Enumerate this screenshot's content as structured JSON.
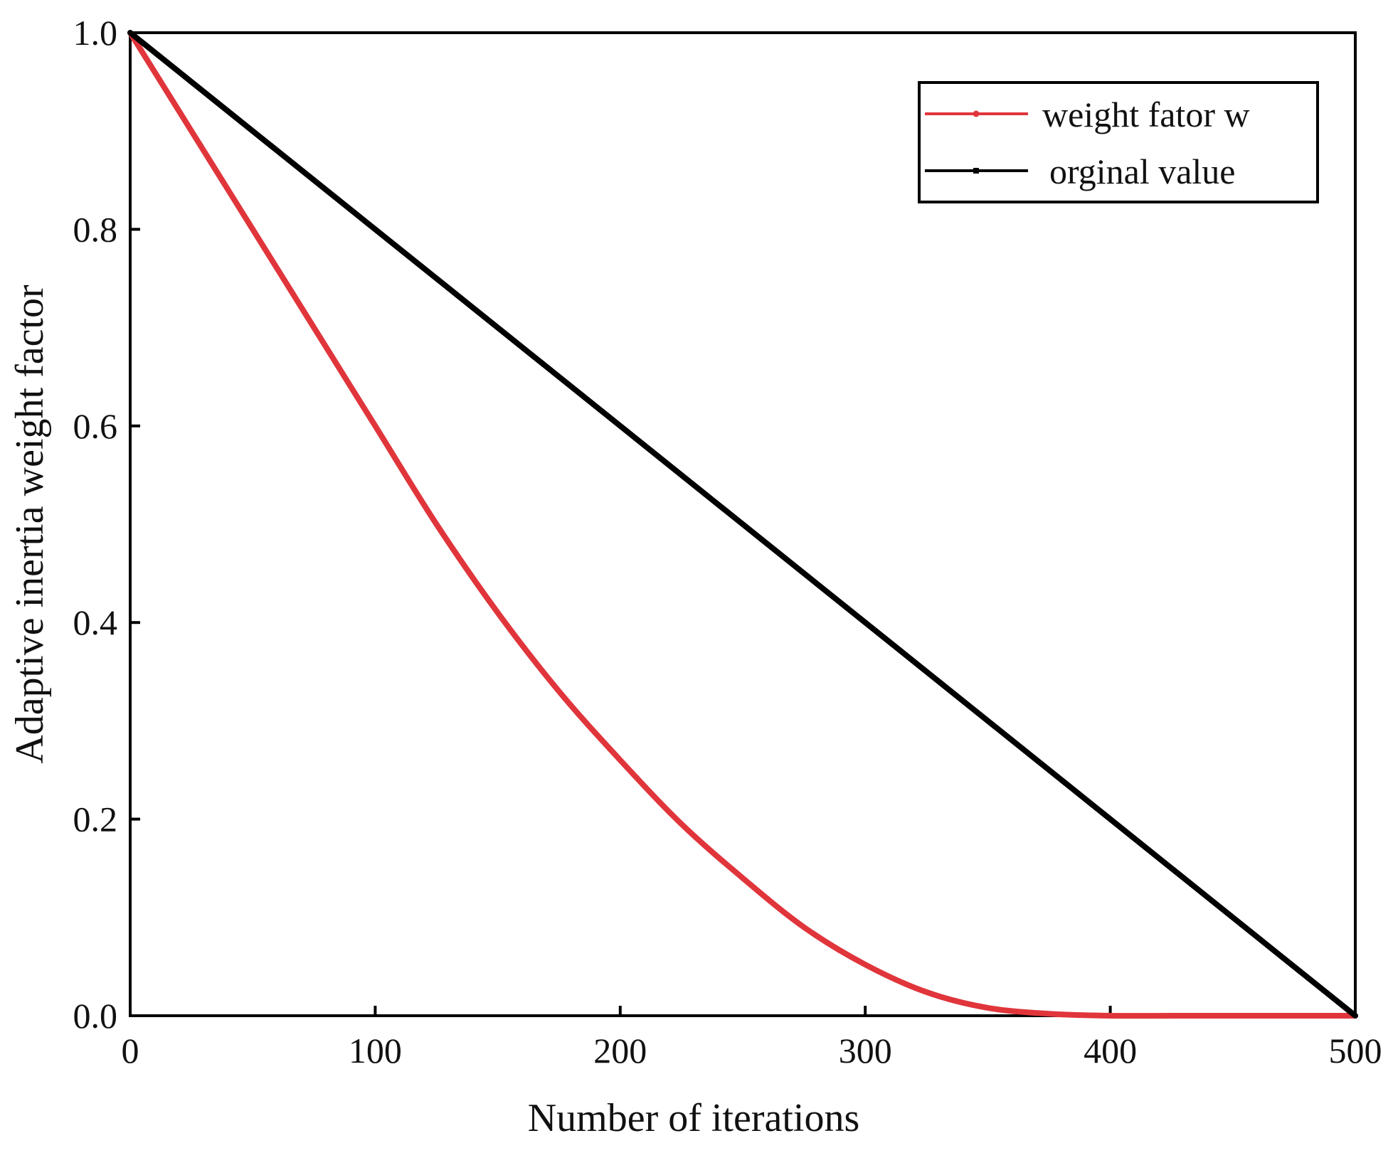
{
  "chart_data": {
    "type": "line",
    "title": "",
    "xlabel": "Number of iterations",
    "ylabel": "Adaptive inertia weight factor",
    "xlim": [
      0,
      500
    ],
    "ylim": [
      0,
      1.0
    ],
    "x_ticks": [
      0,
      100,
      200,
      300,
      400,
      500
    ],
    "y_ticks": [
      0.0,
      0.2,
      0.4,
      0.6,
      0.8,
      1.0
    ],
    "x_tick_labels": [
      "0",
      "100",
      "200",
      "300",
      "400",
      "500"
    ],
    "y_tick_labels": [
      "0.0",
      "0.2",
      "0.4",
      "0.6",
      "0.8",
      "1.0"
    ],
    "grid": false,
    "legend_position": "top-right",
    "series": [
      {
        "name": "weight fator w",
        "color": "#e0353b",
        "x": [
          0,
          25,
          50,
          75,
          100,
          125,
          150,
          175,
          200,
          225,
          250,
          275,
          300,
          325,
          350,
          375,
          400,
          425,
          450,
          475,
          500
        ],
        "y": [
          1.0,
          0.9,
          0.8,
          0.7,
          0.6,
          0.5,
          0.41,
          0.33,
          0.26,
          0.195,
          0.14,
          0.09,
          0.052,
          0.024,
          0.008,
          0.002,
          0.0,
          0.0,
          0.0,
          0.0,
          0.0
        ]
      },
      {
        "name": "orginal value",
        "color": "#000000",
        "x": [
          0,
          500
        ],
        "y": [
          1.0,
          0.0
        ]
      }
    ]
  }
}
